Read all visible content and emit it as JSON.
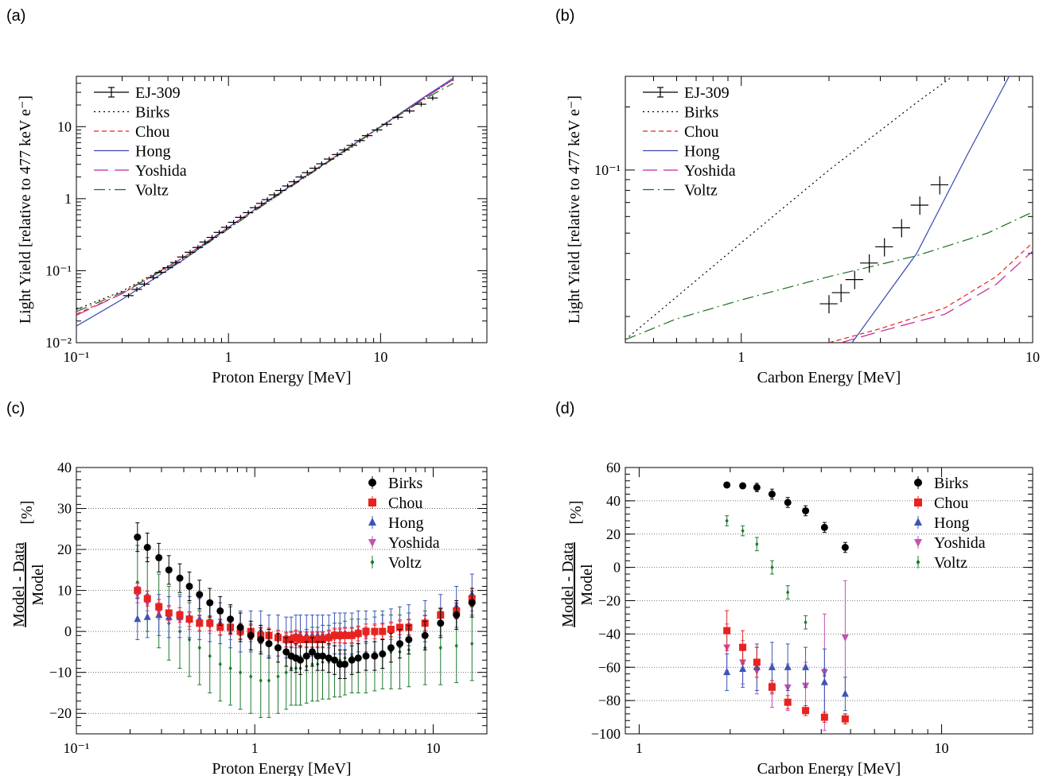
{
  "figure": {
    "panel_labels": [
      "(a)",
      "(b)",
      "(c)",
      "(d)"
    ]
  },
  "chart_data": [
    {
      "panel": "(a)",
      "type": "line",
      "xlabel": "Proton Energy [MeV]",
      "ylabel": "Light Yield [relative to 477 keV e⁻]",
      "xscale": "log",
      "yscale": "log",
      "xlim": [
        0.1,
        50
      ],
      "ylim": [
        0.01,
        50
      ],
      "xticks": [
        {
          "v": 0.1,
          "label": "10⁻¹"
        },
        {
          "v": 1,
          "label": "1"
        },
        {
          "v": 10,
          "label": "10"
        }
      ],
      "yticks": [
        {
          "v": 0.01,
          "label": "10⁻²"
        },
        {
          "v": 0.1,
          "label": "10⁻¹"
        },
        {
          "v": 1,
          "label": "1"
        },
        {
          "v": 10,
          "label": "10"
        }
      ],
      "legend": "top-left",
      "grid": false,
      "data_series": {
        "name": "EJ-309",
        "color": "#000000",
        "x": [
          0.22,
          0.25,
          0.28,
          0.32,
          0.36,
          0.4,
          0.45,
          0.5,
          0.56,
          0.63,
          0.7,
          0.78,
          0.87,
          0.97,
          1.08,
          1.2,
          1.35,
          1.5,
          1.65,
          1.8,
          2.0,
          2.2,
          2.45,
          2.7,
          3.0,
          3.3,
          3.7,
          4.1,
          4.6,
          5.2,
          5.8,
          6.5,
          7.3,
          8.2,
          9.5,
          11,
          13,
          15.5,
          18.5,
          22
        ],
        "y": [
          0.045,
          0.055,
          0.065,
          0.08,
          0.095,
          0.11,
          0.13,
          0.155,
          0.18,
          0.21,
          0.25,
          0.29,
          0.34,
          0.4,
          0.47,
          0.55,
          0.64,
          0.75,
          0.86,
          0.97,
          1.13,
          1.3,
          1.5,
          1.72,
          2.0,
          2.3,
          2.65,
          3.05,
          3.55,
          4.1,
          4.75,
          5.5,
          6.4,
          7.5,
          9.0,
          10.8,
          13.5,
          16.5,
          20.5,
          25
        ],
        "xerr_frac": 0.08
      },
      "series": [
        {
          "name": "Birks",
          "color": "#000000",
          "dash": "2,4",
          "x": [
            0.1,
            0.2,
            0.5,
            1,
            2,
            5,
            10,
            20,
            30
          ],
          "y": [
            0.029,
            0.052,
            0.15,
            0.4,
            1.07,
            3.8,
            10,
            26,
            45
          ]
        },
        {
          "name": "Chou",
          "color": "#e8231f",
          "dash": "6,4",
          "x": [
            0.1,
            0.2,
            0.5,
            1,
            2,
            5,
            10,
            20,
            30
          ],
          "y": [
            0.025,
            0.048,
            0.15,
            0.4,
            1.07,
            3.8,
            10,
            26,
            45
          ]
        },
        {
          "name": "Hong",
          "color": "#3548b3",
          "dash": "",
          "x": [
            0.1,
            0.2,
            0.5,
            1,
            2,
            5,
            10,
            20,
            30
          ],
          "y": [
            0.017,
            0.04,
            0.14,
            0.4,
            1.07,
            3.8,
            10,
            27,
            47
          ]
        },
        {
          "name": "Yoshida",
          "color": "#c0289c",
          "dash": "18,8",
          "x": [
            0.1,
            0.2,
            0.5,
            1,
            2,
            5,
            10,
            20,
            30
          ],
          "y": [
            0.024,
            0.048,
            0.15,
            0.4,
            1.07,
            3.8,
            10,
            26,
            45
          ]
        },
        {
          "name": "Voltz",
          "color": "#1d6b1d",
          "dash": "14,5,2,5",
          "x": [
            0.1,
            0.2,
            0.5,
            1,
            2,
            5,
            10,
            20,
            30
          ],
          "y": [
            0.027,
            0.05,
            0.14,
            0.38,
            1.03,
            3.7,
            9.9,
            25,
            40
          ]
        }
      ]
    },
    {
      "panel": "(b)",
      "type": "line",
      "xlabel": "Carbon Energy [MeV]",
      "ylabel": "Light Yield [relative to 477 keV e⁻]",
      "xscale": "log",
      "yscale": "log",
      "xlim": [
        0.4,
        10
      ],
      "ylim": [
        0.015,
        0.28
      ],
      "xticks": [
        {
          "v": 1,
          "label": "1"
        },
        {
          "v": 10,
          "label": "10"
        }
      ],
      "yticks": [
        {
          "v": 0.1,
          "label": "10⁻¹"
        }
      ],
      "legend": "top-left",
      "grid": false,
      "data_series": {
        "name": "EJ-309",
        "color": "#000000",
        "x": [
          2.0,
          2.2,
          2.45,
          2.75,
          3.1,
          3.55,
          4.1,
          4.8
        ],
        "y": [
          0.023,
          0.026,
          0.03,
          0.036,
          0.043,
          0.053,
          0.068,
          0.085
        ],
        "xerr_frac": 0.07,
        "yerr_frac": 0.1
      },
      "series": [
        {
          "name": "Birks",
          "color": "#000000",
          "dash": "2,4",
          "x": [
            0.4,
            1,
            2,
            4,
            7
          ],
          "y": [
            0.0155,
            0.045,
            0.1,
            0.21,
            0.37
          ]
        },
        {
          "name": "Chou",
          "color": "#e8231f",
          "dash": "6,4",
          "x": [
            2.0,
            3,
            5,
            7.5,
            10
          ],
          "y": [
            0.015,
            0.0175,
            0.022,
            0.031,
            0.045
          ]
        },
        {
          "name": "Hong",
          "color": "#3548b3",
          "dash": "",
          "x": [
            2.4,
            4,
            6,
            8.3
          ],
          "y": [
            0.015,
            0.04,
            0.12,
            0.28
          ]
        },
        {
          "name": "Yoshida",
          "color": "#c0289c",
          "dash": "18,8",
          "x": [
            2.2,
            3,
            5,
            7.5,
            10
          ],
          "y": [
            0.015,
            0.017,
            0.0205,
            0.0285,
            0.041
          ]
        },
        {
          "name": "Voltz",
          "color": "#1d6b1d",
          "dash": "14,5,2,5",
          "x": [
            0.4,
            0.6,
            1,
            2,
            4,
            7,
            10
          ],
          "y": [
            0.0155,
            0.0195,
            0.024,
            0.031,
            0.039,
            0.05,
            0.063
          ]
        }
      ]
    },
    {
      "panel": "(c)",
      "type": "scatter",
      "xlabel": "Proton Energy [MeV]",
      "ylabel_numerator": "Model - Data",
      "ylabel_denominator": "Model",
      "ylabel_unit": "[%]",
      "xscale": "log",
      "yscale": "linear",
      "xlim": [
        0.1,
        20
      ],
      "ylim": [
        -25,
        40
      ],
      "xticks": [
        {
          "v": 0.1,
          "label": "10⁻¹"
        },
        {
          "v": 1,
          "label": "1"
        },
        {
          "v": 10,
          "label": "10"
        }
      ],
      "yticks": [
        {
          "v": -20,
          "label": "−20"
        },
        {
          "v": -10,
          "label": "−10"
        },
        {
          "v": 0,
          "label": "0"
        },
        {
          "v": 10,
          "label": "10"
        },
        {
          "v": 20,
          "label": "20"
        },
        {
          "v": 30,
          "label": "30"
        },
        {
          "v": 40,
          "label": "40"
        }
      ],
      "grid_y": true,
      "legend": "top-right",
      "x": [
        0.22,
        0.25,
        0.29,
        0.33,
        0.38,
        0.43,
        0.49,
        0.56,
        0.64,
        0.73,
        0.83,
        0.95,
        1.08,
        1.2,
        1.35,
        1.5,
        1.6,
        1.7,
        1.8,
        1.95,
        2.1,
        2.25,
        2.4,
        2.6,
        2.8,
        3.0,
        3.2,
        3.5,
        3.8,
        4.2,
        4.7,
        5.2,
        5.8,
        6.5,
        7.3,
        9.0,
        11,
        13.5,
        16.5
      ],
      "series": [
        {
          "name": "Birks",
          "marker": "circle",
          "color": "#000000",
          "err": 3.5,
          "y": [
            23,
            20.5,
            18,
            15,
            13,
            11,
            9,
            7,
            5,
            3,
            1,
            -1,
            -2,
            -3,
            -4,
            -5,
            -6,
            -6.5,
            -7,
            -6,
            -5,
            -6,
            -6,
            -6.5,
            -7,
            -8,
            -8,
            -7,
            -6.5,
            -6,
            -6,
            -5.5,
            -4,
            -3,
            -2,
            -1,
            2,
            4,
            7
          ]
        },
        {
          "name": "Chou",
          "marker": "square",
          "color": "#e8231f",
          "err": 1.8,
          "y": [
            10,
            8,
            6,
            4.5,
            4,
            3,
            2,
            2,
            1,
            1,
            0,
            0,
            -1,
            -1,
            -1.5,
            -2,
            -2,
            -1.5,
            -2,
            -2,
            -2,
            -2,
            -2,
            -1.5,
            -1,
            -1,
            -1,
            -1,
            -0.5,
            0,
            0,
            0,
            0.5,
            1,
            1,
            2,
            4,
            5,
            8
          ]
        },
        {
          "name": "Hong",
          "marker": "triangle-up",
          "color": "#3c55b8",
          "err": 5,
          "y": [
            3,
            3.5,
            4,
            3.5,
            3.5,
            3.5,
            3,
            2.5,
            2,
            1,
            0,
            0,
            0,
            -1,
            -1,
            -1.5,
            -1.5,
            -1,
            -1,
            -1,
            -1,
            -1,
            -1,
            -1,
            -0.5,
            -0.5,
            -0.5,
            -0.5,
            0,
            0,
            0,
            0,
            0.5,
            1,
            1.5,
            2.5,
            4,
            6,
            9
          ]
        },
        {
          "name": "Yoshida",
          "marker": "triangle-down",
          "color": "#c452b0",
          "err": 2,
          "y": [
            9,
            7,
            5,
            4,
            3,
            2.5,
            2,
            1.5,
            1,
            0,
            0,
            -0.5,
            -1,
            -1.5,
            -2,
            -2.5,
            -2,
            -2,
            -2,
            -2,
            -2,
            -2,
            -2,
            -2,
            -1.5,
            -1.5,
            -1,
            -1,
            -1,
            -1,
            -0.5,
            0,
            0,
            0.5,
            1,
            2,
            3.5,
            5,
            7
          ]
        },
        {
          "name": "Voltz",
          "marker": "diamond",
          "color": "#1d7a2d",
          "err": 9,
          "y": [
            12,
            9,
            5,
            2,
            0,
            -2,
            -4,
            -6,
            -8,
            -9,
            -10,
            -11,
            -12,
            -12,
            -11,
            -10,
            -9,
            -9,
            -9,
            -8.5,
            -8,
            -8,
            -7.5,
            -7.5,
            -7,
            -7,
            -6.5,
            -6,
            -6,
            -6,
            -5.5,
            -5,
            -5,
            -5,
            -4.5,
            -4,
            -4,
            -3.5,
            -3
          ]
        }
      ]
    },
    {
      "panel": "(d)",
      "type": "scatter",
      "xlabel": "Carbon Energy [MeV]",
      "ylabel_numerator": "Model - Data",
      "ylabel_denominator": "Model",
      "ylabel_unit": "[%]",
      "xscale": "log",
      "yscale": "linear",
      "xlim": [
        0.9,
        20
      ],
      "ylim": [
        -100,
        60
      ],
      "xticks": [
        {
          "v": 1,
          "label": "1"
        },
        {
          "v": 10,
          "label": "10"
        }
      ],
      "yticks": [
        {
          "v": -100,
          "label": "−100"
        },
        {
          "v": -80,
          "label": "−80"
        },
        {
          "v": -60,
          "label": "−60"
        },
        {
          "v": -40,
          "label": "−40"
        },
        {
          "v": -20,
          "label": "−20"
        },
        {
          "v": 0,
          "label": "0"
        },
        {
          "v": 20,
          "label": "20"
        },
        {
          "v": 40,
          "label": "40"
        },
        {
          "v": 60,
          "label": "60"
        }
      ],
      "grid_y": true,
      "legend": "top-right",
      "x": [
        1.95,
        2.2,
        2.45,
        2.75,
        3.1,
        3.55,
        4.1,
        4.8
      ],
      "series": [
        {
          "name": "Birks",
          "marker": "circle",
          "color": "#000000",
          "y": [
            49.5,
            49,
            48,
            44,
            39,
            34,
            24,
            12
          ],
          "err": [
            1.5,
            1.5,
            2.5,
            3,
            3,
            3,
            3,
            3
          ]
        },
        {
          "name": "Chou",
          "marker": "square",
          "color": "#e8231f",
          "y": [
            -38,
            -48,
            -57,
            -72,
            -81,
            -86,
            -90,
            -91
          ],
          "err": [
            12,
            10,
            9,
            4,
            4,
            3,
            3,
            3
          ]
        },
        {
          "name": "Hong",
          "marker": "triangle-up",
          "color": "#3c55b8",
          "y": [
            -63,
            -61,
            -60,
            -60,
            -60,
            -60,
            -69,
            -76
          ],
          "err": [
            11,
            11,
            14,
            15,
            14,
            12,
            20,
            10
          ]
        },
        {
          "name": "Yoshida",
          "marker": "triangle-down",
          "color": "#c452b0",
          "y": [
            -48,
            -57,
            -62,
            -71,
            -72,
            -71,
            -63,
            -42
          ],
          "err": [
            14,
            13,
            14,
            13,
            14,
            14,
            35,
            34
          ]
        },
        {
          "name": "Voltz",
          "marker": "diamond",
          "color": "#1d7a2d",
          "y": [
            28,
            22,
            14,
            0,
            -15,
            -33,
            -65,
            -91
          ],
          "err": [
            3,
            3,
            4,
            4,
            4,
            4,
            4,
            3
          ]
        }
      ]
    }
  ]
}
